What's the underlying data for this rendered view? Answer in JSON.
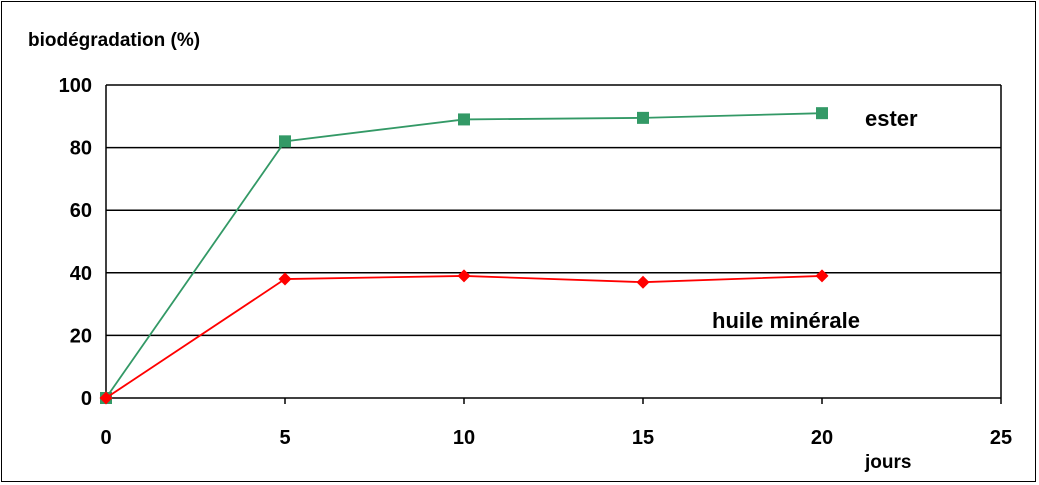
{
  "chart_data": {
    "type": "line",
    "title": "",
    "ylabel": "biodégradation (%)",
    "xlabel": "jours",
    "xlim": [
      0,
      25
    ],
    "ylim": [
      0,
      100
    ],
    "x_ticks": [
      "0",
      "5",
      "10",
      "15",
      "20",
      "25"
    ],
    "y_ticks": [
      "0",
      "20",
      "40",
      "60",
      "80",
      "100"
    ],
    "grid": "horizontal",
    "series": [
      {
        "name": "ester",
        "color": "#339966",
        "marker": "square",
        "x": [
          0,
          5,
          10,
          15,
          20
        ],
        "y": [
          0,
          82,
          89,
          89.5,
          91
        ]
      },
      {
        "name": "huile minérale",
        "color": "#ff0000",
        "marker": "diamond",
        "x": [
          0,
          5,
          10,
          15,
          20
        ],
        "y": [
          0,
          38,
          39,
          37,
          39
        ]
      }
    ]
  }
}
